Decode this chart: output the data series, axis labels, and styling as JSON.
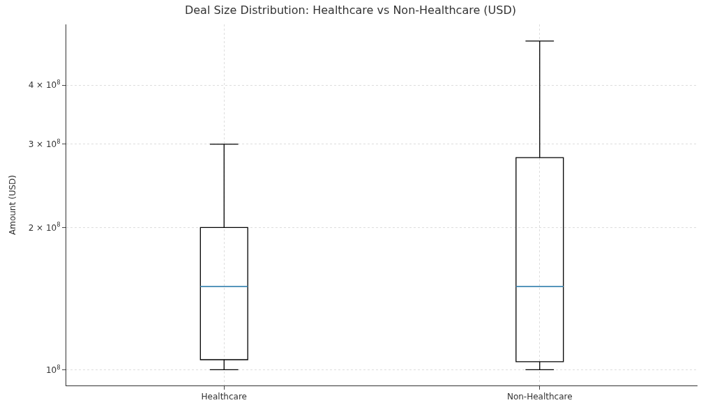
{
  "chart_data": {
    "type": "box",
    "title": "Deal Size Distribution: Healthcare vs Non-Healthcare (USD)",
    "ylabel": "Amount (USD)",
    "categories": [
      "Healthcare",
      "Non-Healthcare"
    ],
    "series": [
      {
        "color": "#000000",
        "boxes": [
          {
            "low": 100000000,
            "q1": 105000000,
            "median": 150000000,
            "q3": 200000000,
            "high": 300000000
          },
          {
            "low": 100000000,
            "q1": 104000000,
            "median": 150000000,
            "q3": 281000000,
            "high": 496000000
          }
        ]
      }
    ],
    "log": true,
    "ylim": [
      92600000,
      538000000
    ],
    "yticks": [
      {
        "value": 100000000,
        "label": "10$^{8}$"
      },
      {
        "value": 200000000,
        "label": "2 × 10$^{8}$"
      },
      {
        "value": 300000000,
        "label": "3 × 10$^{8}$"
      },
      {
        "value": 400000000,
        "label": "4 × 10$^{8}$"
      }
    ],
    "grid": true
  }
}
